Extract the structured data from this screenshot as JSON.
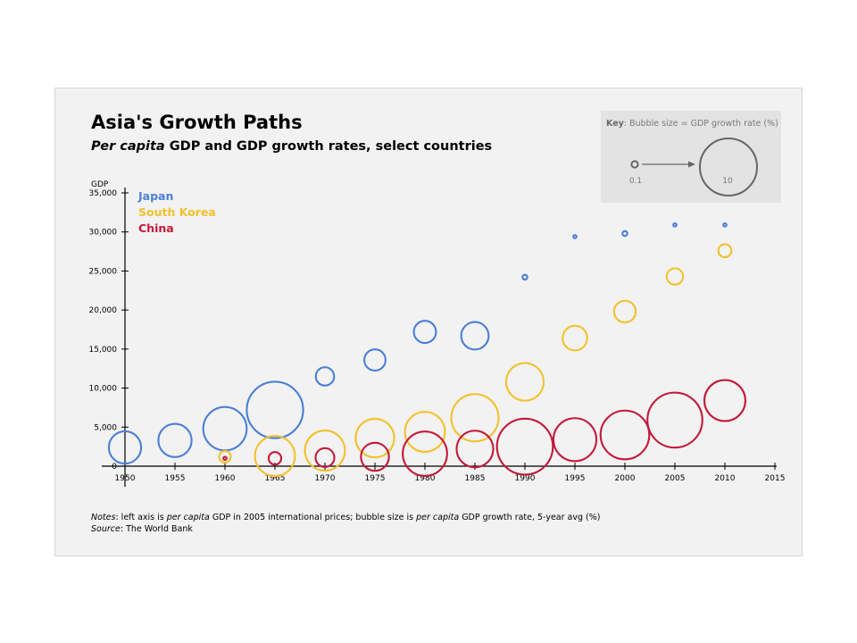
{
  "title": "Asia's Growth Paths",
  "subtitle": {
    "italic": "Per capita",
    "rest": " GDP and GDP growth rates, select countries"
  },
  "key": {
    "label_bold": "Key",
    "label_rest": ": Bubble size = GDP growth rate (%)",
    "small_value": "0.1",
    "large_value": "10"
  },
  "notes": {
    "notes_label": "Notes",
    "notes_part1": ": left axis is ",
    "notes_italic1": "per capita",
    "notes_part2": " GDP in 2005 international prices; bubble size is ",
    "notes_italic2": "per capita",
    "notes_part3": " GDP growth rate, 5-year avg (%)",
    "source_label": "Source",
    "source_text": ": The World Bank"
  },
  "colors": {
    "japan": "#4a7fd6",
    "south_korea": "#f2c12e",
    "china": "#c2193a",
    "axis": "#000000",
    "key_circle": "#666666"
  },
  "chart_data": {
    "type": "scatter",
    "title": "Asia's Growth Paths",
    "subtitle": "Per capita GDP and GDP growth rates, select countries",
    "ylabel": "GDP",
    "xlabel": "",
    "xlim": [
      1950,
      2015
    ],
    "ylim": [
      0,
      35000
    ],
    "x_ticks": [
      "1950",
      "1955",
      "1960",
      "1965",
      "1970",
      "1975",
      "1980",
      "1985",
      "1990",
      "1995",
      "2000",
      "2005",
      "2010",
      "2015"
    ],
    "y_ticks": [
      "0",
      "5,000",
      "10,000",
      "15,000",
      "20,000",
      "25,000",
      "30,000",
      "35,000"
    ],
    "grid": false,
    "legend_position": "top-left",
    "size_meaning": "GDP growth rate (%)",
    "series": [
      {
        "name": "Japan",
        "color": "#4a7fd6",
        "points": [
          {
            "x": 1950,
            "y": 2400,
            "growth": 6.7
          },
          {
            "x": 1955,
            "y": 3300,
            "growth": 6.9
          },
          {
            "x": 1960,
            "y": 4800,
            "growth": 9.0
          },
          {
            "x": 1965,
            "y": 7200,
            "growth": 11.7
          },
          {
            "x": 1970,
            "y": 11500,
            "growth": 3.8
          },
          {
            "x": 1975,
            "y": 13600,
            "growth": 4.4
          },
          {
            "x": 1980,
            "y": 17200,
            "growth": 4.6
          },
          {
            "x": 1985,
            "y": 16700,
            "growth": 5.7
          },
          {
            "x": 1990,
            "y": 24200,
            "growth": 1.0
          },
          {
            "x": 1995,
            "y": 29400,
            "growth": 0.6
          },
          {
            "x": 2000,
            "y": 29800,
            "growth": 1.0
          },
          {
            "x": 2005,
            "y": 30900,
            "growth": 0.25
          },
          {
            "x": 2010,
            "y": 30900,
            "growth": 0.55
          }
        ]
      },
      {
        "name": "South Korea",
        "color": "#f2c12e",
        "points": [
          {
            "x": 1960,
            "y": 1200,
            "growth": 2.4
          },
          {
            "x": 1965,
            "y": 1300,
            "growth": 8.3
          },
          {
            "x": 1970,
            "y": 2000,
            "growth": 8.3
          },
          {
            "x": 1975,
            "y": 3600,
            "growth": 8.0
          },
          {
            "x": 1980,
            "y": 4400,
            "growth": 8.3
          },
          {
            "x": 1985,
            "y": 6200,
            "growth": 9.8
          },
          {
            "x": 1990,
            "y": 10800,
            "growth": 7.8
          },
          {
            "x": 1995,
            "y": 16400,
            "growth": 5.1
          },
          {
            "x": 2000,
            "y": 19800,
            "growth": 4.5
          },
          {
            "x": 2005,
            "y": 24300,
            "growth": 3.4
          },
          {
            "x": 2010,
            "y": 27600,
            "growth": 2.7
          }
        ]
      },
      {
        "name": "China",
        "color": "#c2193a",
        "points": [
          {
            "x": 1960,
            "y": 1000,
            "growth": 0.4
          },
          {
            "x": 1965,
            "y": 1000,
            "growth": 2.6
          },
          {
            "x": 1970,
            "y": 1100,
            "growth": 3.9
          },
          {
            "x": 1975,
            "y": 1200,
            "growth": 5.8
          },
          {
            "x": 1980,
            "y": 1600,
            "growth": 9.2
          },
          {
            "x": 1985,
            "y": 2200,
            "growth": 7.6
          },
          {
            "x": 1990,
            "y": 2500,
            "growth": 11.6
          },
          {
            "x": 1995,
            "y": 3400,
            "growth": 8.9
          },
          {
            "x": 2000,
            "y": 4000,
            "growth": 10.1
          },
          {
            "x": 2005,
            "y": 5900,
            "growth": 11.4
          },
          {
            "x": 2010,
            "y": 8400,
            "growth": 8.5
          }
        ]
      }
    ]
  }
}
